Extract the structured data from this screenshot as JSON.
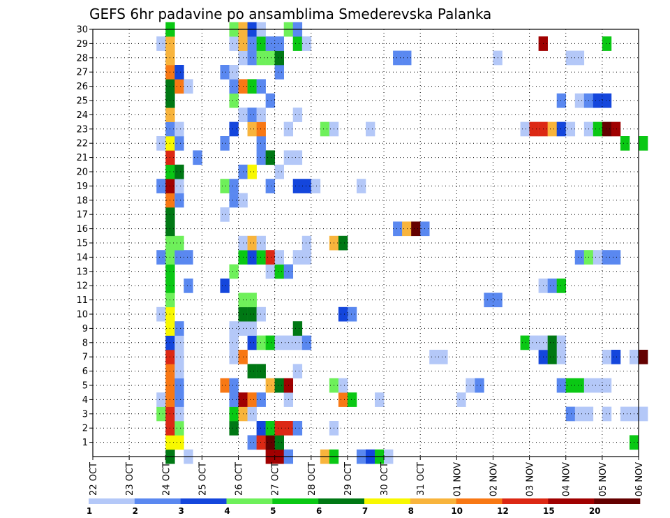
{
  "chart_data": {
    "type": "heatmap",
    "title": "GEFS 6hr padavine po ansamblima Smederevska Palanka",
    "y_ticks": [
      "1",
      "2",
      "3",
      "4",
      "5",
      "6",
      "7",
      "8",
      "9",
      "10",
      "11",
      "12",
      "13",
      "14",
      "15",
      "16",
      "17",
      "18",
      "19",
      "20",
      "21",
      "22",
      "23",
      "24",
      "25",
      "26",
      "27",
      "28",
      "29",
      "30"
    ],
    "ylim": [
      0,
      30
    ],
    "x_ticks": [
      "22 OCT",
      "23 OCT",
      "24 OCT",
      "25 OCT",
      "26 OCT",
      "27 OCT",
      "28 OCT",
      "29 OCT",
      "30 OCT",
      "31 OCT",
      "01 NOV",
      "02 NOV",
      "03 NOV",
      "04 NOV",
      "05 NOV",
      "06 NOV"
    ],
    "x_step_hours": 6,
    "grid": true,
    "colorbar": {
      "colors": [
        "#b4c8f8",
        "#5a88f0",
        "#1446dc",
        "#6ef05a",
        "#0ac814",
        "#007814",
        "#f8f800",
        "#f8b43c",
        "#f87814",
        "#dc2814",
        "#a00000",
        "#640000"
      ],
      "labels": [
        "1",
        "2",
        "3",
        "4",
        "5",
        "6",
        "7",
        "8",
        "10",
        "12",
        "15",
        "20"
      ]
    },
    "series": [
      {
        "row": 0,
        "cells": [
          [
            8,
            5
          ],
          [
            10,
            0
          ],
          [
            19,
            10
          ],
          [
            20,
            10
          ],
          [
            21,
            1
          ],
          [
            25,
            7
          ],
          [
            26,
            4
          ],
          [
            29,
            1
          ],
          [
            30,
            2
          ],
          [
            31,
            4
          ],
          [
            32,
            0
          ]
        ]
      },
      {
        "row": 1,
        "cells": [
          [
            8,
            6
          ],
          [
            9,
            6
          ],
          [
            17,
            1
          ],
          [
            18,
            9
          ],
          [
            19,
            11
          ],
          [
            20,
            5
          ],
          [
            59,
            4
          ]
        ]
      },
      {
        "row": 2,
        "cells": [
          [
            8,
            9
          ],
          [
            9,
            3
          ],
          [
            15,
            5
          ],
          [
            18,
            2
          ],
          [
            19,
            4
          ],
          [
            20,
            9
          ],
          [
            21,
            9
          ],
          [
            22,
            1
          ],
          [
            26,
            0
          ]
        ]
      },
      {
        "row": 3,
        "cells": [
          [
            7,
            3
          ],
          [
            8,
            9
          ],
          [
            9,
            0
          ],
          [
            15,
            4
          ],
          [
            16,
            7
          ],
          [
            17,
            0
          ],
          [
            52,
            1
          ],
          [
            53,
            0
          ],
          [
            54,
            0
          ],
          [
            56,
            0
          ],
          [
            58,
            0
          ],
          [
            59,
            0
          ],
          [
            60,
            0
          ]
        ]
      },
      {
        "row": 4,
        "cells": [
          [
            7,
            0
          ],
          [
            8,
            8
          ],
          [
            9,
            1
          ],
          [
            15,
            1
          ],
          [
            16,
            10
          ],
          [
            17,
            8
          ],
          [
            18,
            1
          ],
          [
            21,
            0
          ],
          [
            27,
            8
          ],
          [
            28,
            4
          ],
          [
            31,
            0
          ],
          [
            40,
            0
          ]
        ]
      },
      {
        "row": 5,
        "cells": [
          [
            8,
            8
          ],
          [
            9,
            1
          ],
          [
            14,
            8
          ],
          [
            15,
            1
          ],
          [
            19,
            7
          ],
          [
            20,
            5
          ],
          [
            21,
            10
          ],
          [
            26,
            3
          ],
          [
            27,
            0
          ],
          [
            41,
            0
          ],
          [
            42,
            1
          ],
          [
            51,
            1
          ],
          [
            52,
            4
          ],
          [
            53,
            4
          ],
          [
            54,
            0
          ],
          [
            55,
            0
          ],
          [
            56,
            0
          ]
        ]
      },
      {
        "row": 6,
        "cells": [
          [
            8,
            8
          ],
          [
            9,
            0
          ],
          [
            17,
            5
          ],
          [
            18,
            5
          ],
          [
            22,
            0
          ]
        ]
      },
      {
        "row": 7,
        "cells": [
          [
            8,
            9
          ],
          [
            9,
            0
          ],
          [
            15,
            0
          ],
          [
            16,
            8
          ],
          [
            37,
            0
          ],
          [
            38,
            0
          ],
          [
            49,
            2
          ],
          [
            50,
            5
          ],
          [
            51,
            0
          ],
          [
            56,
            0
          ],
          [
            57,
            2
          ],
          [
            59,
            0
          ],
          [
            60,
            11
          ]
        ]
      },
      {
        "row": 8,
        "cells": [
          [
            8,
            2
          ],
          [
            9,
            0
          ],
          [
            15,
            0
          ],
          [
            17,
            2
          ],
          [
            18,
            3
          ],
          [
            19,
            4
          ],
          [
            20,
            0
          ],
          [
            21,
            0
          ],
          [
            22,
            0
          ],
          [
            23,
            1
          ],
          [
            47,
            4
          ],
          [
            48,
            0
          ],
          [
            49,
            0
          ],
          [
            50,
            5
          ],
          [
            51,
            0
          ]
        ]
      },
      {
        "row": 9,
        "cells": [
          [
            8,
            6
          ],
          [
            9,
            1
          ],
          [
            15,
            0
          ],
          [
            16,
            0
          ],
          [
            17,
            0
          ],
          [
            22,
            5
          ]
        ]
      },
      {
        "row": 10,
        "cells": [
          [
            7,
            0
          ],
          [
            8,
            6
          ],
          [
            16,
            5
          ],
          [
            17,
            5
          ],
          [
            18,
            0
          ],
          [
            27,
            2
          ],
          [
            28,
            1
          ]
        ]
      },
      {
        "row": 11,
        "cells": [
          [
            8,
            3
          ],
          [
            16,
            3
          ],
          [
            17,
            3
          ],
          [
            43,
            1
          ],
          [
            44,
            1
          ]
        ]
      },
      {
        "row": 12,
        "cells": [
          [
            8,
            4
          ],
          [
            10,
            1
          ],
          [
            14,
            2
          ],
          [
            49,
            0
          ],
          [
            50,
            1
          ],
          [
            51,
            4
          ]
        ]
      },
      {
        "row": 13,
        "cells": [
          [
            8,
            4
          ],
          [
            15,
            3
          ],
          [
            19,
            0
          ],
          [
            20,
            4
          ],
          [
            21,
            1
          ]
        ]
      },
      {
        "row": 14,
        "cells": [
          [
            7,
            1
          ],
          [
            8,
            3
          ],
          [
            9,
            1
          ],
          [
            10,
            1
          ],
          [
            16,
            4
          ],
          [
            17,
            2
          ],
          [
            18,
            4
          ],
          [
            19,
            9
          ],
          [
            20,
            0
          ],
          [
            22,
            0
          ],
          [
            23,
            0
          ],
          [
            53,
            1
          ],
          [
            54,
            3
          ],
          [
            55,
            0
          ],
          [
            56,
            1
          ],
          [
            57,
            1
          ]
        ]
      },
      {
        "row": 15,
        "cells": [
          [
            8,
            3
          ],
          [
            9,
            3
          ],
          [
            16,
            0
          ],
          [
            17,
            7
          ],
          [
            18,
            0
          ],
          [
            23,
            0
          ],
          [
            26,
            7
          ],
          [
            27,
            5
          ]
        ]
      },
      {
        "row": 16,
        "cells": [
          [
            8,
            5
          ],
          [
            33,
            1
          ],
          [
            34,
            7
          ],
          [
            35,
            11
          ],
          [
            36,
            1
          ]
        ]
      },
      {
        "row": 17,
        "cells": [
          [
            8,
            5
          ],
          [
            14,
            0
          ]
        ]
      },
      {
        "row": 18,
        "cells": [
          [
            8,
            8
          ],
          [
            9,
            1
          ],
          [
            15,
            1
          ],
          [
            16,
            0
          ]
        ]
      },
      {
        "row": 19,
        "cells": [
          [
            7,
            1
          ],
          [
            8,
            10
          ],
          [
            9,
            0
          ],
          [
            14,
            3
          ],
          [
            15,
            1
          ],
          [
            19,
            1
          ],
          [
            22,
            2
          ],
          [
            23,
            2
          ],
          [
            24,
            0
          ],
          [
            29,
            0
          ]
        ]
      },
      {
        "row": 20,
        "cells": [
          [
            8,
            4
          ],
          [
            9,
            5
          ],
          [
            16,
            1
          ],
          [
            17,
            6
          ],
          [
            20,
            0
          ]
        ]
      },
      {
        "row": 21,
        "cells": [
          [
            8,
            9
          ],
          [
            11,
            1
          ],
          [
            18,
            1
          ],
          [
            19,
            5
          ],
          [
            21,
            0
          ],
          [
            22,
            0
          ]
        ]
      },
      {
        "row": 22,
        "cells": [
          [
            7,
            0
          ],
          [
            8,
            6
          ],
          [
            9,
            1
          ],
          [
            14,
            1
          ],
          [
            18,
            1
          ],
          [
            58,
            4
          ],
          [
            60,
            4
          ]
        ]
      },
      {
        "row": 23,
        "cells": [
          [
            8,
            1
          ],
          [
            9,
            0
          ],
          [
            15,
            2
          ],
          [
            17,
            7
          ],
          [
            18,
            8
          ],
          [
            21,
            0
          ],
          [
            25,
            3
          ],
          [
            26,
            0
          ],
          [
            30,
            0
          ],
          [
            47,
            0
          ],
          [
            48,
            9
          ],
          [
            49,
            9
          ],
          [
            50,
            7
          ],
          [
            51,
            2
          ],
          [
            52,
            0
          ],
          [
            54,
            0
          ],
          [
            55,
            4
          ],
          [
            56,
            11
          ],
          [
            57,
            10
          ]
        ]
      },
      {
        "row": 24,
        "cells": [
          [
            8,
            7
          ],
          [
            16,
            0
          ],
          [
            17,
            1
          ],
          [
            18,
            0
          ],
          [
            22,
            0
          ]
        ]
      },
      {
        "row": 25,
        "cells": [
          [
            8,
            5
          ],
          [
            15,
            3
          ],
          [
            19,
            1
          ],
          [
            51,
            1
          ],
          [
            53,
            0
          ],
          [
            54,
            1
          ],
          [
            55,
            2
          ],
          [
            56,
            2
          ]
        ]
      },
      {
        "row": 26,
        "cells": [
          [
            8,
            5
          ],
          [
            9,
            8
          ],
          [
            10,
            0
          ],
          [
            15,
            1
          ],
          [
            16,
            8
          ],
          [
            17,
            4
          ],
          [
            18,
            1
          ]
        ]
      },
      {
        "row": 27,
        "cells": [
          [
            8,
            8
          ],
          [
            9,
            2
          ],
          [
            14,
            1
          ],
          [
            15,
            0
          ],
          [
            20,
            1
          ]
        ]
      },
      {
        "row": 28,
        "cells": [
          [
            8,
            7
          ],
          [
            16,
            0
          ],
          [
            17,
            1
          ],
          [
            18,
            3
          ],
          [
            19,
            3
          ],
          [
            20,
            5
          ],
          [
            33,
            1
          ],
          [
            34,
            1
          ],
          [
            44,
            0
          ],
          [
            52,
            0
          ],
          [
            53,
            0
          ]
        ]
      },
      {
        "row": 29,
        "cells": [
          [
            7,
            0
          ],
          [
            8,
            7
          ],
          [
            15,
            0
          ],
          [
            16,
            7
          ],
          [
            17,
            1
          ],
          [
            18,
            4
          ],
          [
            19,
            1
          ],
          [
            20,
            1
          ],
          [
            22,
            4
          ],
          [
            23,
            0
          ],
          [
            49,
            10
          ],
          [
            56,
            4
          ]
        ]
      },
      {
        "row": 30,
        "cells": [
          [
            8,
            4
          ],
          [
            15,
            3
          ],
          [
            16,
            7
          ],
          [
            17,
            2
          ],
          [
            18,
            0
          ],
          [
            21,
            3
          ],
          [
            22,
            1
          ]
        ]
      }
    ]
  }
}
